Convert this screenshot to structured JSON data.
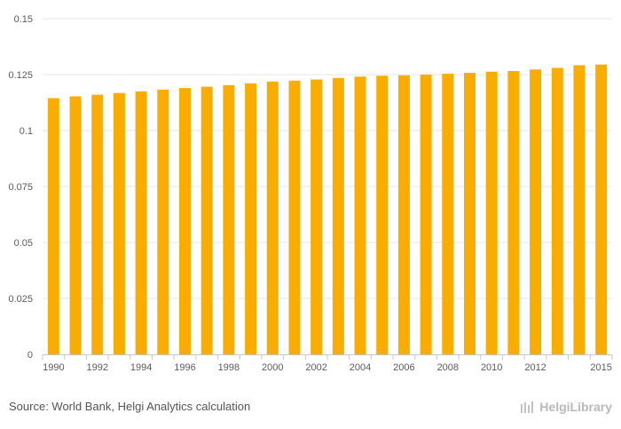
{
  "chart_data": {
    "type": "bar",
    "title": "",
    "xlabel": "",
    "ylabel": "",
    "categories": [
      "1990",
      "1991",
      "1992",
      "1993",
      "1994",
      "1995",
      "1996",
      "1997",
      "1998",
      "1999",
      "2000",
      "2001",
      "2002",
      "2003",
      "2004",
      "2005",
      "2006",
      "2007",
      "2008",
      "2009",
      "2010",
      "2011",
      "2012",
      "2013",
      "2014",
      "2015"
    ],
    "values": [
      0.1145,
      0.1153,
      0.116,
      0.1168,
      0.1175,
      0.1183,
      0.119,
      0.1196,
      0.1203,
      0.1211,
      0.1219,
      0.1223,
      0.1228,
      0.1235,
      0.1241,
      0.1245,
      0.1247,
      0.125,
      0.1254,
      0.1258,
      0.1263,
      0.1266,
      0.1273,
      0.128,
      0.1292,
      0.1295
    ],
    "x_tick_labels": [
      "1990",
      "1992",
      "1994",
      "1996",
      "1998",
      "2000",
      "2002",
      "2004",
      "2006",
      "2008",
      "2010",
      "2012",
      "2015"
    ],
    "y_tick_labels": [
      "0",
      "0.025",
      "0.05",
      "0.075",
      "0.1",
      "0.125",
      "0.15"
    ],
    "ylim": [
      0,
      0.15
    ],
    "grid": true,
    "legend": "none",
    "bar_color": "#f9ad03"
  },
  "footer": {
    "source": "Source: World Bank, Helgi Analytics calculation",
    "brand": "HelgiLibrary"
  },
  "colors": {
    "grid": "#e6e6e6",
    "axis": "#c8c8c8",
    "text": "#5a5a5a"
  }
}
